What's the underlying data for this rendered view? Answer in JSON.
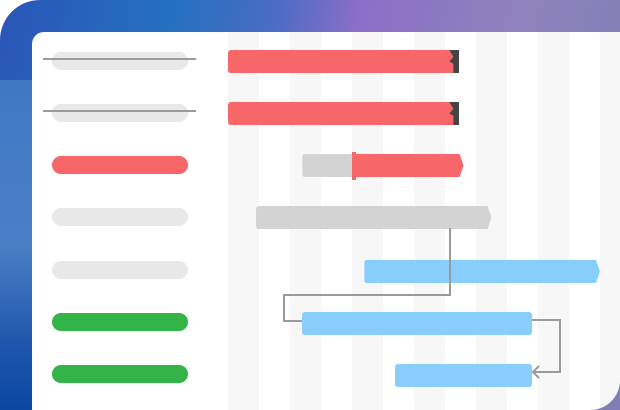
{
  "colors": {
    "critical": "#f76668",
    "inactive": "#d3d3d3",
    "planned": "#87cefd",
    "done_label": "#33b448",
    "pending_label": "#e8e8e8",
    "flag": "#444444",
    "connector": "#9a9a9a",
    "grid_stripe": "#f7f7f7"
  },
  "grid_columns": 12,
  "tasks": [
    {
      "label_style": "pending",
      "struck_through": true,
      "bar": "critical",
      "start": 0,
      "end": 7.4,
      "milestone_flag": true,
      "arrow_end": false
    },
    {
      "label_style": "pending",
      "struck_through": true,
      "bar": "critical",
      "start": 0,
      "end": 7.4,
      "milestone_flag": true,
      "arrow_end": false
    },
    {
      "label_style": "critical",
      "struck_through": false,
      "bar": "critical",
      "start": 2.4,
      "end": 7.6,
      "progress": 0.32,
      "milestone_flag": false,
      "arrow_end": true
    },
    {
      "label_style": "pending",
      "struck_through": false,
      "bar": "inactive",
      "start": 0.9,
      "end": 8.5,
      "milestone_flag": false,
      "arrow_end": true
    },
    {
      "label_style": "pending",
      "struck_through": false,
      "bar": "planned",
      "start": 4.4,
      "end": 12.0,
      "milestone_flag": false,
      "arrow_end": true
    },
    {
      "label_style": "done",
      "struck_through": false,
      "bar": "planned",
      "start": 2.4,
      "end": 9.8,
      "milestone_flag": false,
      "arrow_end": false
    },
    {
      "label_style": "done",
      "struck_through": false,
      "bar": "planned",
      "start": 5.4,
      "end": 9.8,
      "milestone_flag": false,
      "arrow_end": false
    }
  ],
  "dependencies": [
    {
      "from": 4,
      "to": 6,
      "type": "finish-to-start"
    },
    {
      "from": 6,
      "to": 7,
      "type": "finish-to-finish"
    }
  ]
}
